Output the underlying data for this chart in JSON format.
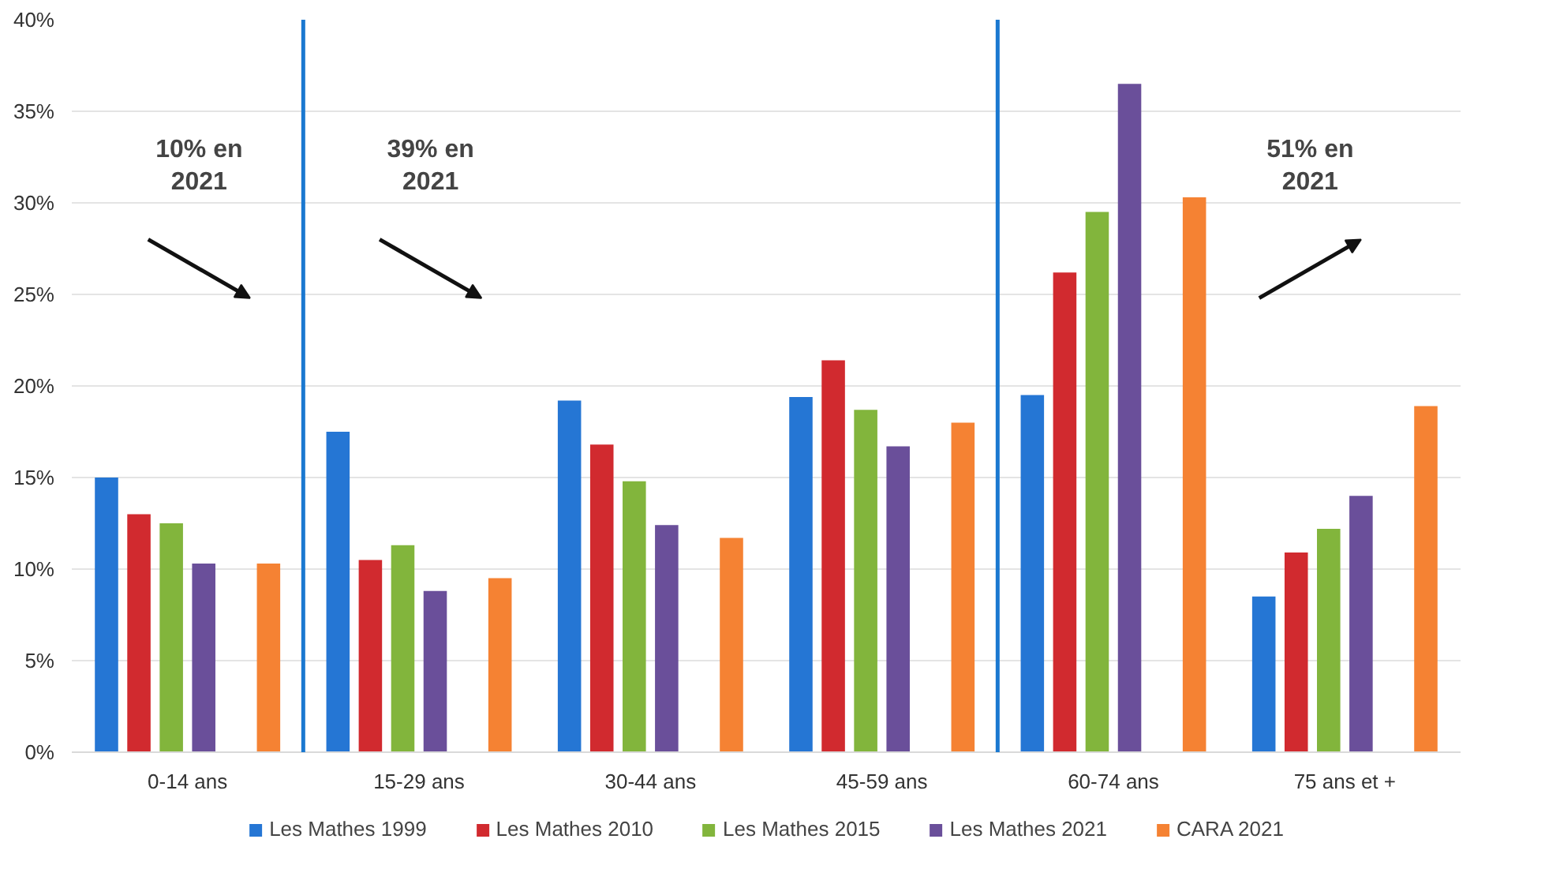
{
  "chart_data": {
    "type": "bar",
    "categories": [
      "0-14 ans",
      "15-29 ans",
      "30-44 ans",
      "45-59 ans",
      "60-74 ans",
      "75 ans et +"
    ],
    "series": [
      {
        "name": "Les Mathes 1999",
        "color": "#2576d4",
        "values": [
          15.0,
          17.5,
          19.2,
          19.4,
          19.5,
          8.5
        ]
      },
      {
        "name": "Les Mathes 2010",
        "color": "#d12a2f",
        "values": [
          13.0,
          10.5,
          16.8,
          21.4,
          26.2,
          10.9
        ]
      },
      {
        "name": "Les Mathes 2015",
        "color": "#82b53c",
        "values": [
          12.5,
          11.3,
          14.8,
          18.7,
          29.5,
          12.2
        ]
      },
      {
        "name": "Les Mathes 2021",
        "color": "#6a4f9a",
        "values": [
          10.3,
          8.8,
          12.4,
          16.7,
          36.5,
          14.0
        ]
      },
      {
        "color": "#18a0e6",
        "values": [
          null,
          null,
          null,
          null,
          null,
          null
        ]
      },
      {
        "name": "CARA 2021",
        "color": "#f58233",
        "values": [
          10.3,
          9.5,
          11.7,
          18.0,
          30.3,
          18.9
        ]
      }
    ],
    "ylim": [
      0,
      40
    ],
    "yticks": [
      {
        "value": 0,
        "label": "0%"
      },
      {
        "value": 5,
        "label": "5%"
      },
      {
        "value": 10,
        "label": "10%"
      },
      {
        "value": 15,
        "label": "15%"
      },
      {
        "value": 20,
        "label": "20%"
      },
      {
        "value": 25,
        "label": "25%"
      },
      {
        "value": 30,
        "label": "30%"
      },
      {
        "value": 35,
        "label": "35%"
      },
      {
        "value": 40,
        "label": "40%"
      }
    ],
    "grid": "y",
    "legend": "bottom",
    "annotations": [
      "10% en\n2021",
      "39% en\n2021",
      "51% en\n2021"
    ]
  }
}
